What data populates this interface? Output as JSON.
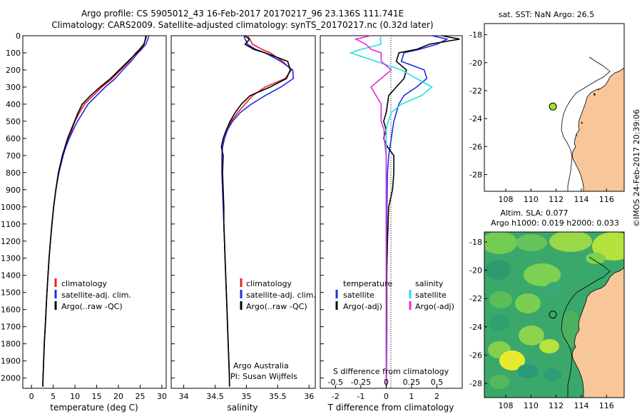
{
  "titles": {
    "line1": "Argo profile: CS 5905012_43 16-Feb-2017 20170217_96 23.136S 111.741E",
    "line2": "Climatology: CARS2009. Satellite-adjusted climatology: synTS_20170217.nc (0.32d later)"
  },
  "credit": "©IMOS 24-Feb-2017 20:39:06",
  "colors": {
    "climatology": "#e8201e",
    "satellite": "#1c2ee6",
    "argo": "#000000",
    "sat_cyan": "#22e2e2",
    "argo_magenta": "#e22ad8",
    "land": "#f7c79a",
    "marker": "#9ee22a"
  },
  "chart_data": [
    {
      "type": "line",
      "id": "temperature",
      "xlabel": "temperature (deg C)",
      "ylabel": "",
      "xlim": [
        -2,
        31
      ],
      "ylim": [
        2060,
        0
      ],
      "y_inverted": true,
      "xticks": [
        "0",
        "5",
        "10",
        "15",
        "20",
        "25",
        "30"
      ],
      "yticks": [
        "0",
        "100",
        "200",
        "300",
        "400",
        "500",
        "600",
        "700",
        "800",
        "900",
        "1000",
        "1100",
        "1200",
        "1300",
        "1400",
        "1500",
        "1600",
        "1700",
        "1800",
        "1900",
        "2000"
      ],
      "y": [
        0,
        20,
        50,
        80,
        100,
        150,
        200,
        250,
        300,
        350,
        400,
        450,
        500,
        550,
        600,
        650,
        700,
        800,
        900,
        1000,
        1100,
        1200,
        1300,
        1400,
        1500,
        1600,
        1700,
        1800,
        1900,
        2000,
        2050
      ],
      "series": [
        {
          "name": "climatology",
          "values": [
            26.5,
            26.3,
            25.8,
            24.8,
            24,
            22.5,
            20.5,
            18.6,
            16.2,
            14.2,
            12.2,
            11,
            10,
            9.3,
            8.5,
            7.8,
            7.2,
            6.2,
            5.6,
            5.1,
            4.7,
            4.35,
            4.05,
            3.8,
            3.55,
            3.35,
            3.15,
            2.95,
            2.8,
            2.65,
            2.6
          ]
        },
        {
          "name": "satellite-adj. clim.",
          "values": [
            27,
            26.8,
            26.3,
            25.3,
            24.5,
            22.9,
            21,
            19.3,
            17,
            15,
            13,
            11.8,
            10.6,
            9.6,
            8.7,
            7.9,
            7.3,
            6.3,
            5.6,
            5.1,
            4.7,
            4.35,
            4.05,
            3.8,
            3.55,
            3.35,
            3.15,
            2.95,
            2.8,
            2.65,
            2.6
          ]
        },
        {
          "name": "Argo(..raw -QC)",
          "values": [
            26.3,
            26.2,
            25.9,
            25,
            24.2,
            22.2,
            20.2,
            18.2,
            15.8,
            13.6,
            11.7,
            10.7,
            9.9,
            9.1,
            8.3,
            7.7,
            7.1,
            6.2,
            5.6,
            5.1,
            4.7,
            4.35,
            4.05,
            3.8,
            3.55,
            3.35,
            3.15,
            2.95,
            2.8,
            2.65,
            2.6
          ]
        }
      ]
    },
    {
      "type": "line",
      "id": "salinity",
      "xlabel": "salinity",
      "ylabel": "",
      "xlim": [
        33.8,
        36.1
      ],
      "ylim": [
        2060,
        0
      ],
      "y_inverted": true,
      "xticks": [
        "34",
        "34.5",
        "35",
        "35.5",
        "36"
      ],
      "y": [
        0,
        20,
        50,
        80,
        100,
        150,
        200,
        250,
        300,
        350,
        400,
        450,
        500,
        550,
        600,
        650,
        700,
        800,
        900,
        1000,
        1100,
        1200,
        1300,
        1400,
        1500,
        1600,
        1700,
        1800,
        1900,
        2000,
        2050
      ],
      "series": [
        {
          "name": "climatology",
          "values": [
            35.02,
            35.05,
            35.1,
            35.25,
            35.38,
            35.58,
            35.72,
            35.62,
            35.3,
            35.1,
            34.98,
            34.86,
            34.76,
            34.7,
            34.65,
            34.62,
            34.61,
            34.61,
            34.62,
            34.63,
            34.64,
            34.65,
            34.66,
            34.67,
            34.68,
            34.69,
            34.7,
            34.71,
            34.72,
            34.73,
            34.73
          ]
        },
        {
          "name": "satellite-adj. clim.",
          "values": [
            34.96,
            34.98,
            35.02,
            35.15,
            35.3,
            35.55,
            35.74,
            35.75,
            35.55,
            35.3,
            35.08,
            34.9,
            34.78,
            34.7,
            34.65,
            34.62,
            34.61,
            34.61,
            34.62,
            34.63,
            34.64,
            34.65,
            34.66,
            34.67,
            34.68,
            34.69,
            34.7,
            34.71,
            34.72,
            34.73,
            34.73
          ]
        },
        {
          "name": "Argo(..raw -QC)",
          "values": [
            34.97,
            35.05,
            34.98,
            35.12,
            35.3,
            35.66,
            35.7,
            35.64,
            35.38,
            35.06,
            34.92,
            34.82,
            34.74,
            34.68,
            34.63,
            34.6,
            34.63,
            34.62,
            34.63,
            34.64,
            34.64,
            34.65,
            34.66,
            34.67,
            34.68,
            34.69,
            34.7,
            34.71,
            34.72,
            34.73,
            34.73
          ]
        }
      ],
      "annotations": [
        "Argo Australia",
        "PI: Susan Wijffels"
      ]
    },
    {
      "type": "line",
      "id": "difference",
      "xlabel": "T difference from climatology",
      "xlabel2": "S difference from climatology",
      "xlim": [
        -2.6,
        3.0
      ],
      "ylim": [
        2060,
        0
      ],
      "y_inverted": true,
      "xticks": [
        "-2",
        "-1",
        "0",
        "1",
        "2"
      ],
      "xticks_s": [
        "-0.5",
        "-0.25",
        "0",
        "0.25",
        "0.5"
      ],
      "legend_headers": [
        "temperature",
        "salinity"
      ],
      "y": [
        0,
        20,
        50,
        80,
        100,
        150,
        200,
        250,
        300,
        350,
        400,
        450,
        500,
        550,
        600,
        650,
        700,
        800,
        900,
        1000,
        1200,
        1400,
        1600,
        1800,
        2000,
        2050
      ],
      "series": [
        {
          "name": "T satellite",
          "values": [
            1.8,
            2.4,
            2.0,
            1.3,
            0.7,
            0.6,
            1.5,
            1.6,
            1.2,
            0.7,
            0.5,
            0.4,
            0.3,
            0.25,
            0.2,
            0.15,
            0.1,
            0.05,
            0.04,
            0.03,
            0.02,
            0.02,
            0.02,
            0.02,
            0.01,
            0.01
          ]
        },
        {
          "name": "T Argo(-adj)",
          "values": [
            2.2,
            2.9,
            1.7,
            1.2,
            0.5,
            0.4,
            0.8,
            0.7,
            0.4,
            0.1,
            0.05,
            0,
            -0.1,
            0,
            -0.1,
            0.05,
            0.3,
            0.3,
            0.25,
            0.1,
            0.05,
            0.02,
            0.02,
            0.01,
            0.01,
            0.01
          ]
        },
        {
          "name": "S satellite",
          "values": [
            -0.05,
            -0.06,
            -0.05,
            -0.25,
            -0.35,
            -0.1,
            0.15,
            0.3,
            0.45,
            0.35,
            0.15,
            0.05,
            0.02,
            0,
            0,
            0,
            0,
            0,
            0,
            0,
            0,
            0,
            0,
            0,
            0,
            0
          ]
        },
        {
          "name": "S Argo(-adj)",
          "values": [
            -0.15,
            -0.3,
            -0.2,
            -0.15,
            -0.05,
            -0.05,
            0.05,
            -0.05,
            -0.15,
            -0.1,
            -0.05,
            -0.05,
            -0.05,
            -0.02,
            -0.02,
            -0.01,
            0,
            0,
            0,
            0,
            0,
            0,
            0,
            0,
            0,
            0
          ]
        }
      ],
      "legend": [
        "satellite",
        "Argo(-adj)",
        "satellite",
        "Argo(-adj)"
      ]
    }
  ],
  "maps": {
    "sst": {
      "title": "sat. SST: NaN Argo: 26.5",
      "xticks": [
        "108",
        "110",
        "112",
        "114",
        "116"
      ],
      "yticks": [
        "-18",
        "-20",
        "-22",
        "-24",
        "-26",
        "-28"
      ],
      "marker": {
        "lon": 111.741,
        "lat": -23.136
      }
    },
    "sla": {
      "title1": "Altim. SLA: 0.077",
      "title2": "Argo h1000: 0.019 h2000: 0.033",
      "xticks": [
        "108",
        "110",
        "112",
        "114",
        "116"
      ],
      "yticks": [
        "-18",
        "-20",
        "-22",
        "-24",
        "-26",
        "-28"
      ],
      "marker": {
        "lon": 111.741,
        "lat": -23.136
      }
    }
  }
}
